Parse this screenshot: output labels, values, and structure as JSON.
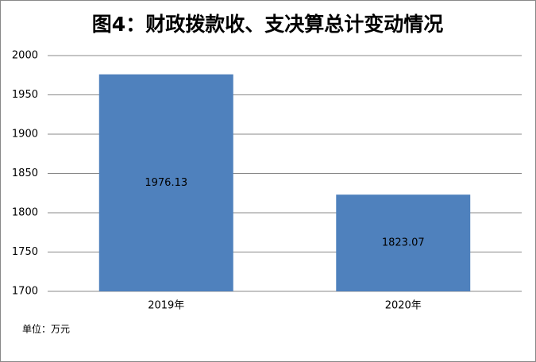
{
  "chart_data": {
    "type": "bar",
    "title": "图4：财政拨款收、支决算总计变动情况",
    "categories": [
      "2019年",
      "2020年"
    ],
    "values": [
      1976.13,
      1823.07
    ],
    "color": "#4f81bd",
    "ylim": [
      1700,
      2000
    ],
    "yticks": [
      1700,
      1750,
      1800,
      1850,
      1900,
      1950,
      2000
    ],
    "grid": true,
    "note": "单位：万元"
  }
}
